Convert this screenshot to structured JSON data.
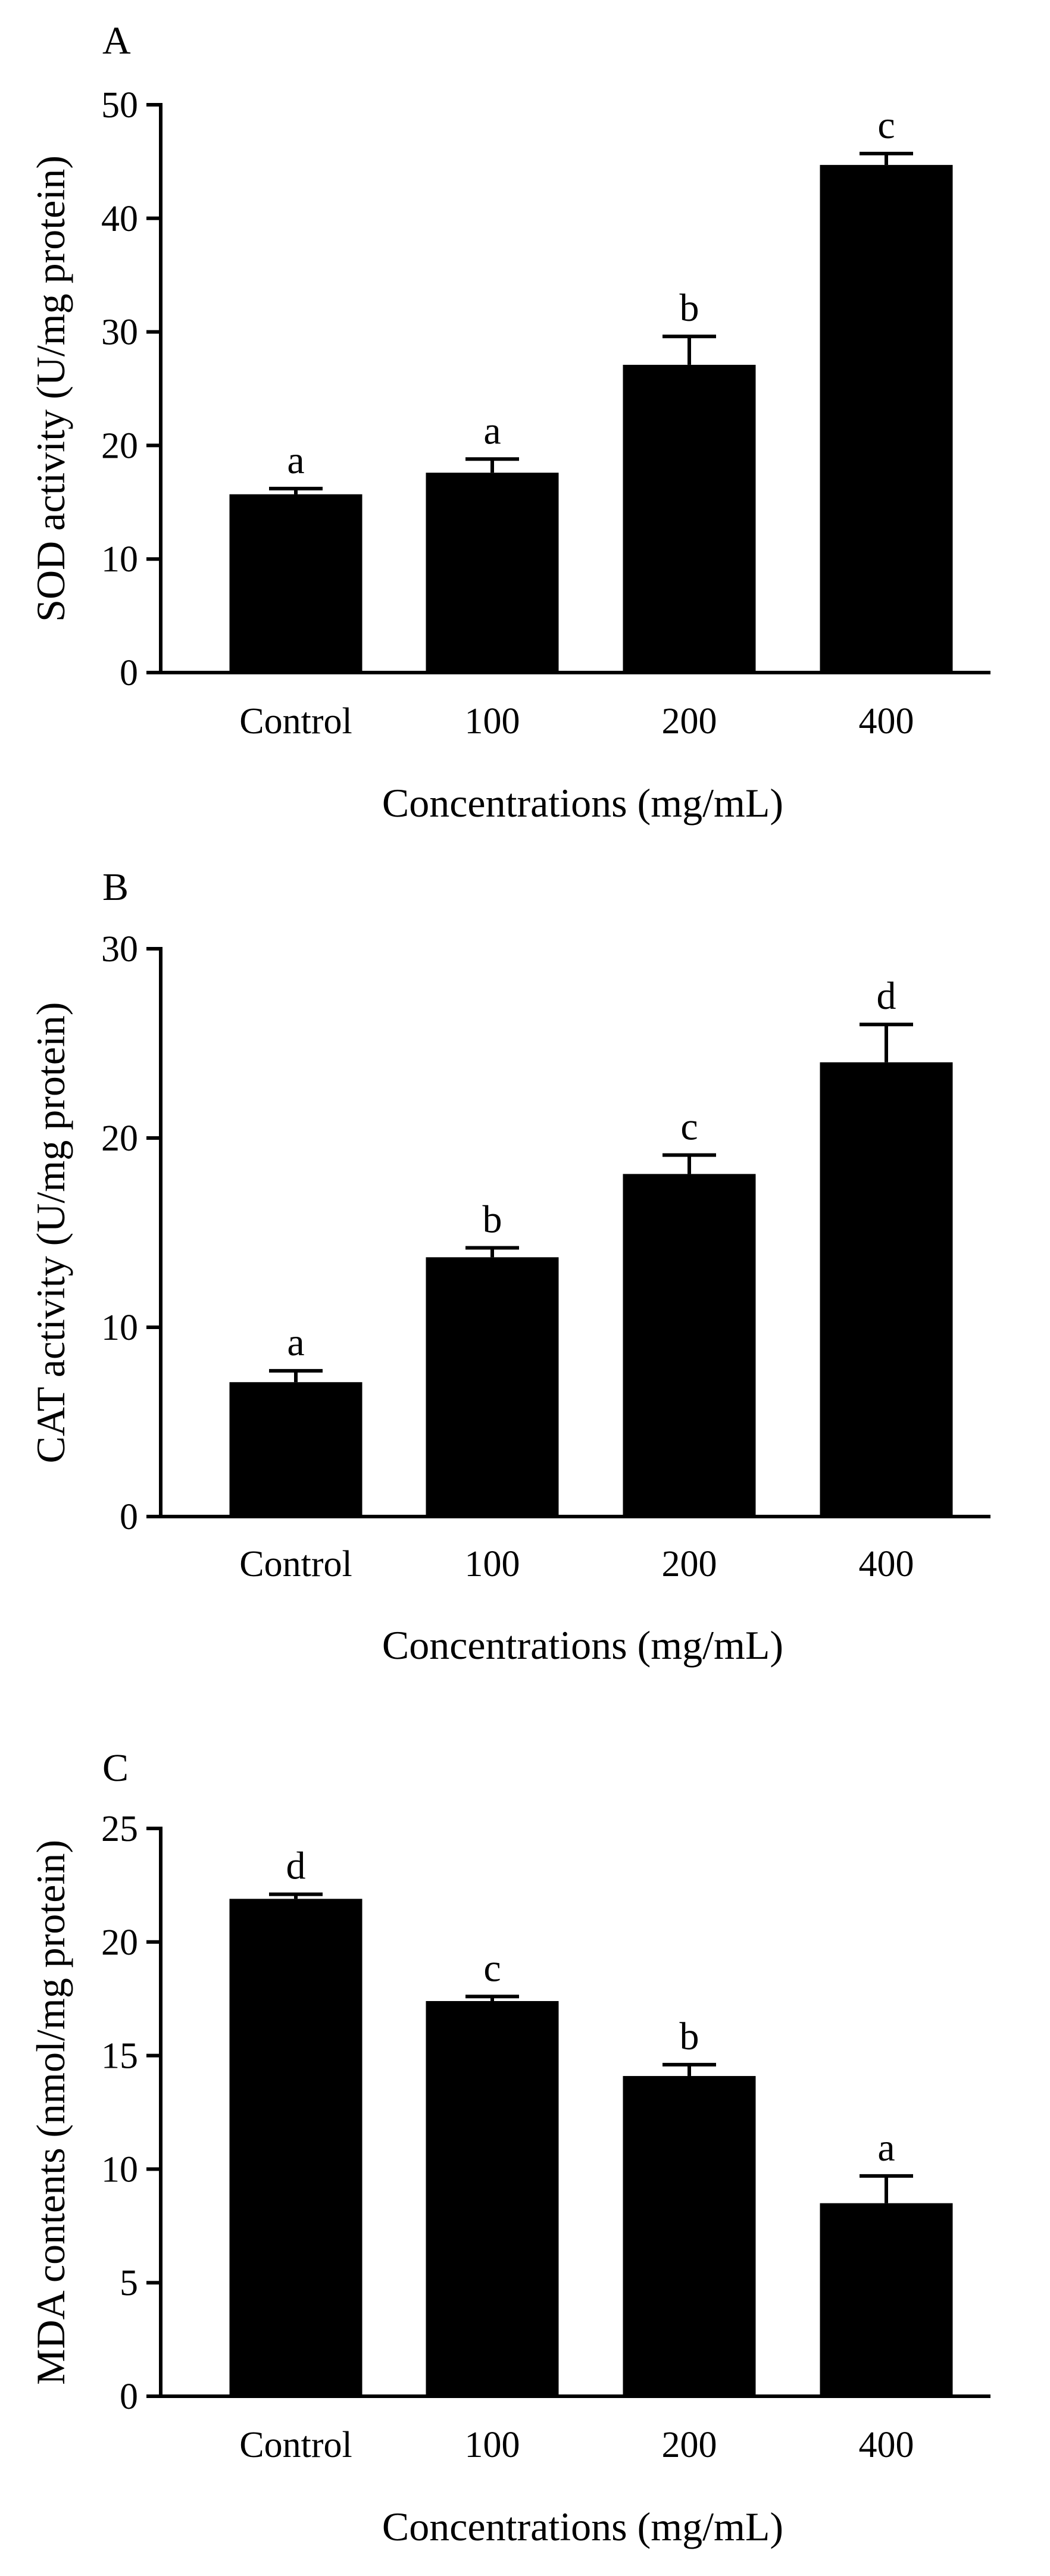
{
  "chart_data": [
    {
      "type": "bar",
      "panel_label": "A",
      "categories": [
        "Control",
        "100",
        "200",
        "400"
      ],
      "values": [
        15.7,
        17.6,
        27.1,
        44.7
      ],
      "errors": [
        0.5,
        1.2,
        2.5,
        1.0
      ],
      "significance": [
        "a",
        "a",
        "b",
        "c"
      ],
      "ylim": [
        0,
        50
      ],
      "yticks": [
        0,
        10,
        20,
        30,
        40,
        50
      ],
      "ylabel": "SOD activity (U/mg protein)",
      "xlabel": "Concentrations (mg/mL)",
      "bar_color": "#000000"
    },
    {
      "type": "bar",
      "panel_label": "B",
      "categories": [
        "Control",
        "100",
        "200",
        "400"
      ],
      "values": [
        7.1,
        13.7,
        18.1,
        24.0
      ],
      "errors": [
        0.6,
        0.5,
        1.0,
        2.0
      ],
      "significance": [
        "a",
        "b",
        "c",
        "d"
      ],
      "ylim": [
        0,
        30
      ],
      "yticks": [
        0,
        10,
        20,
        30
      ],
      "ylabel": "CAT activity (U/mg protein)",
      "xlabel": "Concentrations (mg/mL)",
      "bar_color": "#000000"
    },
    {
      "type": "bar",
      "panel_label": "C",
      "categories": [
        "Control",
        "100",
        "200",
        "400"
      ],
      "values": [
        21.9,
        17.4,
        14.1,
        8.5
      ],
      "errors": [
        0.2,
        0.2,
        0.5,
        1.2
      ],
      "significance": [
        "d",
        "c",
        "b",
        "a"
      ],
      "ylim": [
        0,
        25
      ],
      "yticks": [
        0,
        5,
        10,
        15,
        20,
        25
      ],
      "ylabel": "MDA contents (nmol/mg protein)",
      "xlabel": "Concentrations (mg/mL)",
      "bar_color": "#000000"
    }
  ]
}
